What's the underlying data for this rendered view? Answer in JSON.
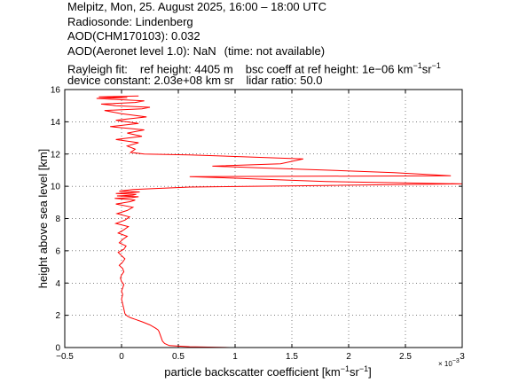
{
  "header": {
    "line1": "Melpitz, Mon, 25. August 2025, 16:00 – 18:00 UTC",
    "line2": "Radiosonde: Lindenberg",
    "line3": "AOD(CHM170103): 0.032",
    "line4a": "AOD(Aeronet level 1.0): NaN",
    "line4b": "(time: not available)",
    "line5a": "Rayleigh fit:",
    "line5b": "ref height: 4405 m",
    "line5c": "bsc coeff at ref height: 1e−06 km",
    "line5sup1": "−1",
    "line5d": "sr",
    "line5sup2": "−1",
    "line6a": "device constant: 2.03e+08 km sr",
    "line6b": "lidar ratio: 50.0"
  },
  "chart_data": {
    "type": "line",
    "title": "",
    "xlabel_main": "particle backscatter coefficient [km",
    "xlabel_sup1": "−1",
    "xlabel_mid": "sr",
    "xlabel_sup2": "−1",
    "xlabel_end": "]",
    "ylabel": "height above sea level [km]",
    "x_exponent_base": "× 10",
    "x_exponent_power": "−3",
    "xlim": [
      -0.5,
      3.0
    ],
    "ylim": [
      0,
      16
    ],
    "xticks": [
      -0.5,
      0,
      0.5,
      1,
      1.5,
      2,
      2.5,
      3
    ],
    "xtick_labels": [
      "−0.5",
      "0",
      "0.5",
      "1",
      "1.5",
      "2",
      "2.5",
      "3"
    ],
    "yticks": [
      0,
      2,
      4,
      6,
      8,
      10,
      12,
      14,
      16
    ],
    "ytick_labels": [
      "0",
      "2",
      "4",
      "6",
      "8",
      "10",
      "12",
      "14",
      "16"
    ],
    "grid": true,
    "line_color": "#ff0000",
    "series": [
      {
        "x": [
          0.95,
          0.6,
          0.42,
          0.38,
          0.36,
          0.35,
          0.34,
          0.33,
          0.32,
          0.3,
          0.25,
          0.18,
          0.12,
          0.08,
          0.05,
          0.03,
          0.02,
          0.01,
          0.0,
          0.01,
          0.0,
          0.01,
          0.02,
          0.0,
          -0.01,
          0.0,
          0.02,
          0.01,
          -0.02,
          0.01,
          0.03,
          0.0,
          -0.03,
          0.02,
          0.04,
          -0.02,
          0.01,
          0.05,
          -0.03,
          0.02,
          0.06,
          -0.05,
          0.03,
          0.07,
          -0.04,
          0.05,
          0.1,
          -0.05,
          0.08,
          0.12,
          -0.06,
          0.09,
          0.15,
          -0.04,
          0.1,
          0.13,
          -0.05,
          0.08,
          0.16,
          -0.02,
          0.1,
          0.6,
          1.8,
          3.0,
          1.8,
          1.0,
          0.6,
          2.9,
          2.4,
          1.8,
          1.2,
          0.8,
          1.4,
          1.6,
          1.0,
          0.6,
          0.2,
          0.08,
          0.12,
          0.05,
          0.15,
          -0.05,
          0.18,
          0.05,
          0.2,
          -0.1,
          0.15,
          -0.05,
          0.22,
          0.0,
          -0.15,
          0.18,
          0.25,
          -0.05,
          -0.18,
          0.12,
          0.2,
          -0.1,
          -0.22,
          0.05,
          -0.2,
          0.15
        ],
        "y": [
          0.0,
          0.05,
          0.12,
          0.25,
          0.4,
          0.6,
          0.8,
          1.0,
          1.1,
          1.2,
          1.4,
          1.6,
          1.75,
          1.85,
          1.95,
          2.1,
          2.4,
          2.7,
          3.0,
          3.3,
          3.5,
          3.7,
          3.9,
          4.1,
          4.3,
          4.5,
          4.7,
          4.9,
          5.1,
          5.3,
          5.5,
          5.7,
          5.9,
          6.1,
          6.3,
          6.5,
          6.7,
          6.9,
          7.1,
          7.3,
          7.5,
          7.7,
          7.9,
          8.1,
          8.3,
          8.5,
          8.7,
          8.9,
          9.05,
          9.15,
          9.25,
          9.3,
          9.35,
          9.4,
          9.45,
          9.5,
          9.55,
          9.6,
          9.65,
          9.7,
          9.8,
          9.95,
          10.05,
          10.15,
          10.3,
          10.5,
          10.6,
          10.65,
          10.85,
          11.0,
          11.15,
          11.25,
          11.4,
          11.7,
          11.85,
          11.95,
          12.0,
          12.1,
          12.3,
          12.5,
          12.7,
          12.9,
          13.1,
          13.3,
          13.5,
          13.7,
          13.9,
          14.1,
          14.3,
          14.5,
          14.7,
          14.8,
          14.9,
          15.0,
          15.1,
          15.2,
          15.3,
          15.4,
          15.45,
          15.5,
          15.55,
          15.6
        ]
      }
    ]
  }
}
